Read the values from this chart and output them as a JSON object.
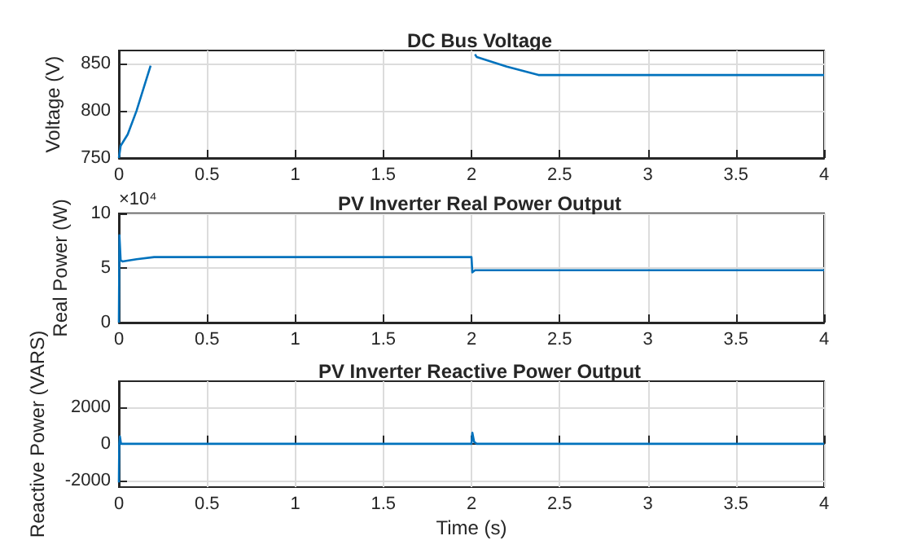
{
  "chart_data": [
    {
      "type": "line",
      "title": "DC Bus Voltage",
      "ylabel": "Voltage (V)",
      "grid": true,
      "xlim": [
        0,
        4
      ],
      "xticks": [
        0,
        0.5,
        1,
        1.5,
        2,
        2.5,
        3,
        3.5,
        4
      ],
      "ylim": [
        750,
        864
      ],
      "yticks": [
        750,
        800,
        850
      ],
      "series": [
        {
          "color": "#0072bd",
          "x": [
            0,
            0.01,
            0.05,
            0.1,
            0.15,
            0.18,
            0.23,
            1,
            2,
            2.02,
            2.03,
            2.2,
            2.38,
            3,
            4
          ],
          "values": [
            750,
            763,
            775,
            800,
            830,
            848,
            null,
            null,
            null,
            860,
            857,
            847,
            838,
            838,
            838
          ]
        }
      ]
    },
    {
      "type": "line",
      "title": "PV Inverter Real Power Output",
      "ylabel": "Real Power (W)",
      "annotations": [
        "×10⁴"
      ],
      "grid": true,
      "xlim": [
        0,
        4
      ],
      "xticks": [
        0,
        0.5,
        1,
        1.5,
        2,
        2.5,
        3,
        3.5,
        4
      ],
      "ylim": [
        0,
        10
      ],
      "yticks": [
        0,
        5,
        10
      ],
      "series": [
        {
          "color": "#0072bd",
          "x": [
            0,
            0.003,
            0.01,
            0.02,
            0.1,
            0.2,
            0.3,
            1,
            2,
            2.005,
            2.02,
            3,
            4
          ],
          "values": [
            0,
            8,
            5.7,
            5.6,
            5.8,
            6,
            6,
            6,
            6,
            4.6,
            4.8,
            4.8,
            4.8
          ]
        }
      ]
    },
    {
      "type": "line",
      "title": "PV Inverter Reactive Power Output",
      "xlabel": "Time (s)",
      "ylabel": "Reactive Power (VARS)",
      "grid": true,
      "xlim": [
        0,
        4
      ],
      "xticks": [
        0,
        0.5,
        1,
        1.5,
        2,
        2.5,
        3,
        3.5,
        4
      ],
      "ylim": [
        -2350,
        3400
      ],
      "yticks": [
        -2000,
        0,
        2000
      ],
      "series": [
        {
          "color": "#0072bd",
          "x": [
            0,
            0.002,
            0.006,
            0.012,
            1,
            2,
            2.005,
            2.015,
            2.03,
            3,
            4
          ],
          "values": [
            -2100,
            0,
            400,
            0,
            0,
            0,
            600,
            100,
            0,
            0,
            0
          ]
        }
      ]
    }
  ]
}
